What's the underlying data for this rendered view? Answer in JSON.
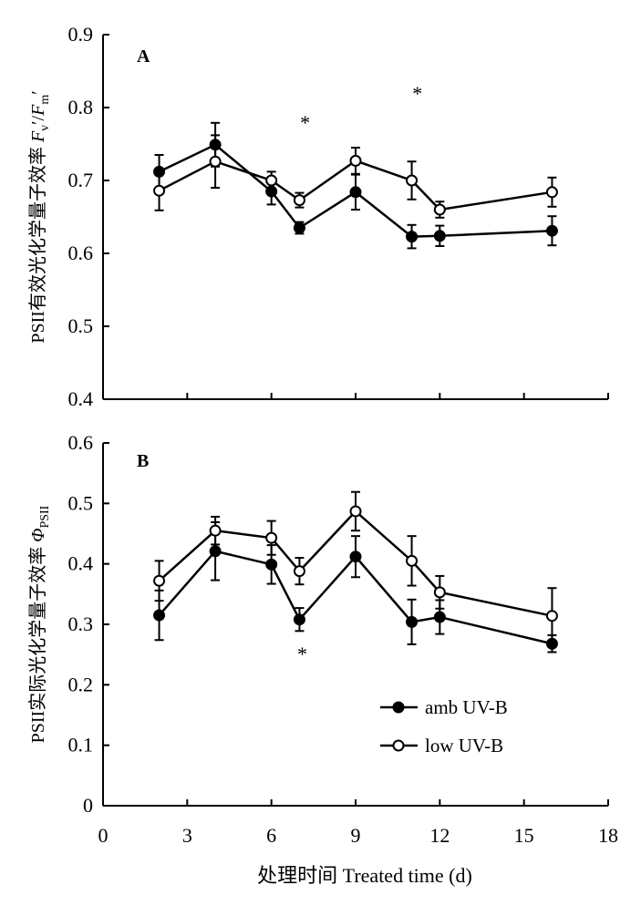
{
  "chart_data": [
    {
      "type": "line",
      "panel_label": "A",
      "ylabel_parts": [
        "PSII有效光化学量子效率 ",
        "F",
        "v",
        "′/",
        "F",
        "m",
        "′"
      ],
      "ylim": [
        0.4,
        0.9
      ],
      "yticks": [
        "0.4",
        "0.5",
        "0.6",
        "0.7",
        "0.8",
        "0.9"
      ],
      "xlim": [
        0,
        18
      ],
      "grid": false,
      "series": [
        {
          "name": "amb UV-B",
          "marker": "filled",
          "x": [
            2,
            4,
            6,
            7,
            9,
            11,
            12,
            16
          ],
          "y": [
            0.712,
            0.749,
            0.685,
            0.635,
            0.684,
            0.623,
            0.624,
            0.631
          ],
          "err": [
            0.023,
            0.03,
            0.018,
            0.008,
            0.024,
            0.016,
            0.014,
            0.02
          ]
        },
        {
          "name": "low UV-B",
          "marker": "open",
          "x": [
            2,
            4,
            6,
            7,
            9,
            11,
            12,
            16
          ],
          "y": [
            0.686,
            0.726,
            0.7,
            0.673,
            0.727,
            0.7,
            0.66,
            0.684
          ],
          "err": [
            0.027,
            0.036,
            0.012,
            0.01,
            0.018,
            0.026,
            0.011,
            0.02
          ]
        }
      ],
      "annotations": [
        {
          "text": "*",
          "x": 7.2,
          "y": 0.77
        },
        {
          "text": "*",
          "x": 11.2,
          "y": 0.81
        }
      ]
    },
    {
      "type": "line",
      "panel_label": "B",
      "ylabel_parts": [
        "PSII实际光化学量子效率 ",
        "Φ",
        "PSII"
      ],
      "ylim": [
        0,
        0.6
      ],
      "yticks": [
        "0",
        "0.1",
        "0.2",
        "0.3",
        "0.4",
        "0.5",
        "0.6"
      ],
      "xlim": [
        0,
        18
      ],
      "xticks": [
        "0",
        "3",
        "6",
        "9",
        "12",
        "15",
        "18"
      ],
      "xlabel": "处理时间 Treated time (d)",
      "grid": false,
      "legend_position": "bottom-center",
      "series": [
        {
          "name": "amb UV-B",
          "marker": "filled",
          "x": [
            2,
            4,
            6,
            7,
            9,
            11,
            12,
            16
          ],
          "y": [
            0.315,
            0.421,
            0.399,
            0.308,
            0.412,
            0.304,
            0.312,
            0.268
          ],
          "err": [
            0.041,
            0.048,
            0.032,
            0.019,
            0.034,
            0.037,
            0.028,
            0.014
          ]
        },
        {
          "name": "low UV-B",
          "marker": "open",
          "x": [
            2,
            4,
            6,
            7,
            9,
            11,
            12,
            16
          ],
          "y": [
            0.372,
            0.455,
            0.443,
            0.388,
            0.487,
            0.405,
            0.353,
            0.314
          ],
          "err": [
            0.033,
            0.023,
            0.028,
            0.022,
            0.032,
            0.041,
            0.027,
            0.046
          ]
        }
      ],
      "annotations": [
        {
          "text": "*",
          "x": 7.1,
          "y": 0.24
        }
      ]
    }
  ]
}
